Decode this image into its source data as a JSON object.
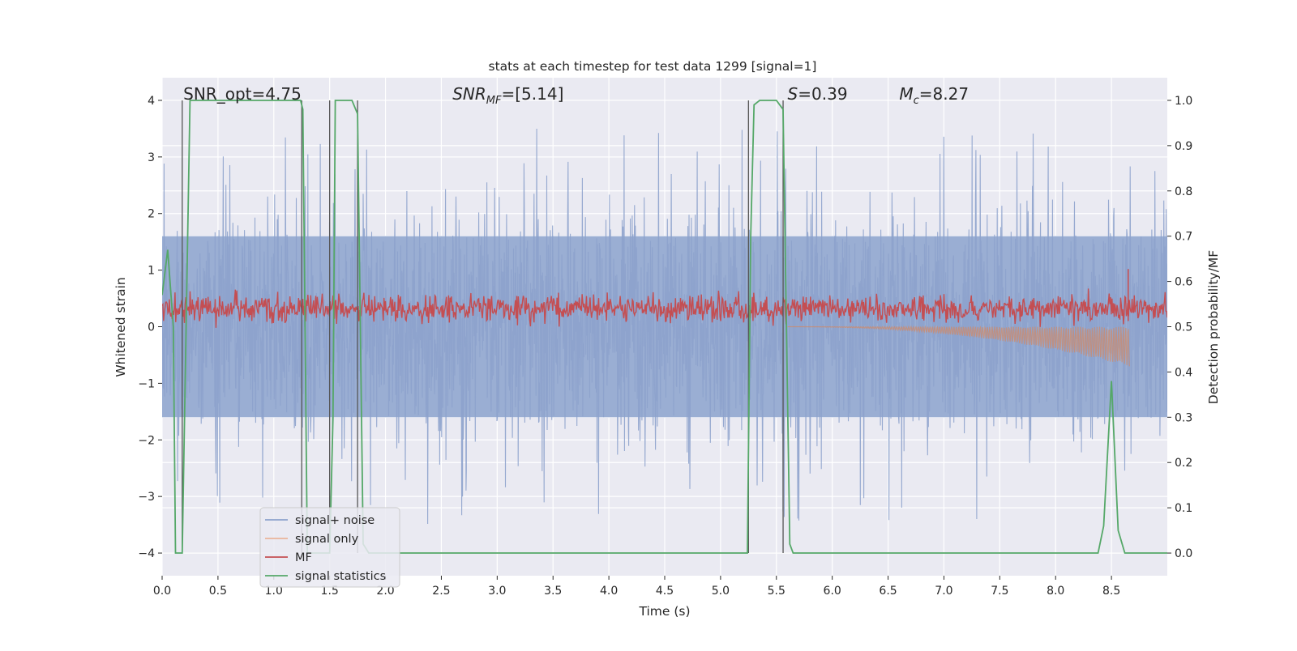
{
  "chart_data": {
    "type": "line",
    "title": "stats at each timestep for test data 1299 [signal=1]",
    "xlabel": "Time (s)",
    "ylabel": "Whitened strain",
    "ylabel_right": "Detection probability/MF",
    "xlim": [
      0.0,
      9.0
    ],
    "ylim": [
      -4.4,
      4.4
    ],
    "ylim_right": [
      -0.05,
      1.05
    ],
    "x_ticks": [
      "0.0",
      "0.5",
      "1.0",
      "1.5",
      "2.0",
      "2.5",
      "3.0",
      "3.5",
      "4.0",
      "4.5",
      "5.0",
      "5.5",
      "6.0",
      "6.5",
      "7.0",
      "7.5",
      "8.0",
      "8.5"
    ],
    "y_ticks_left": [
      "−4",
      "−3",
      "−2",
      "−1",
      "0",
      "1",
      "2",
      "3",
      "4"
    ],
    "y_ticks_right": [
      "0.0",
      "0.1",
      "0.2",
      "0.3",
      "0.4",
      "0.5",
      "0.6",
      "0.7",
      "0.8",
      "0.9",
      "1.0"
    ],
    "grid": true,
    "legend_position": "lower-left",
    "annotations": [
      {
        "id": "snr_opt",
        "text": "SNR_opt=4.75",
        "x": 0.19
      },
      {
        "id": "snr_mf",
        "text": "SNR",
        "sub": "MF",
        "tail": "=[5.14]",
        "x": 2.6
      },
      {
        "id": "s_val",
        "text": "S",
        "tail": "=0.39",
        "x": 5.6
      },
      {
        "id": "mc_val",
        "text": "M",
        "sub": "c",
        "tail": "=8.27",
        "x": 6.6
      }
    ],
    "vertical_lines_x": [
      0.18,
      1.25,
      1.5,
      1.75,
      5.25,
      5.56
    ],
    "series": [
      {
        "name": "signal+ noise",
        "color": "#4c72b0",
        "kind": "noise",
        "amplitude_core": 1.6,
        "amplitude_peak": 4.0
      },
      {
        "name": "signal only",
        "color": "#dd8452",
        "kind": "chirp",
        "x_start": 5.6,
        "x_end": 8.66,
        "y_min_end": -0.7
      },
      {
        "name": "MF",
        "color": "#c44e52",
        "kind": "mf",
        "y_range": [
          -0.02,
          0.72
        ],
        "peak": {
          "x": 8.65,
          "y": 1.02
        }
      },
      {
        "name": "signal statistics",
        "color": "#55a868",
        "kind": "probability",
        "x": [
          0.0,
          0.05,
          0.1,
          0.12,
          0.18,
          0.25,
          1.24,
          1.26,
          1.3,
          1.4,
          1.45,
          1.5,
          1.53,
          1.55,
          1.6,
          1.7,
          1.75,
          1.8,
          1.85,
          2.0,
          5.24,
          5.27,
          5.3,
          5.35,
          5.5,
          5.56,
          5.62,
          5.65,
          8.38,
          8.43,
          8.5,
          8.56,
          8.62,
          9.0
        ],
        "y": [
          0.57,
          0.67,
          0.5,
          0.0,
          0.0,
          1.0,
          1.0,
          0.98,
          0.0,
          0.0,
          0.0,
          0.0,
          0.3,
          1.0,
          1.0,
          1.0,
          0.97,
          0.02,
          0.0,
          0.0,
          0.0,
          0.7,
          0.99,
          1.0,
          1.0,
          0.98,
          0.02,
          0.0,
          0.0,
          0.06,
          0.38,
          0.05,
          0.0,
          0.0
        ]
      }
    ]
  }
}
